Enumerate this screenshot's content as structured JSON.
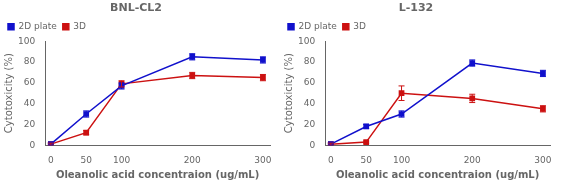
{
  "chart_data": [
    {
      "type": "line",
      "title": "BNL-CL2",
      "x": [
        0,
        50,
        100,
        200,
        300
      ],
      "series": [
        {
          "name": "2D plate",
          "color": "#1111cc",
          "marker": "square",
          "values": [
            1,
            30,
            57,
            85,
            82
          ],
          "errors": [
            1,
            3,
            3,
            3,
            3
          ]
        },
        {
          "name": "3D",
          "color": "#cc1111",
          "marker": "square",
          "values": [
            1,
            12,
            59,
            67,
            65
          ],
          "errors": [
            1,
            2,
            3,
            3,
            3
          ]
        }
      ],
      "xlabel": "Oleanolic acid concentraion (ug/mL)",
      "ylabel": "Cytotoxicity (%)",
      "xlim": [
        -8,
        310
      ],
      "ylim": [
        0,
        100
      ],
      "xticks": [
        0,
        50,
        100,
        200,
        300
      ],
      "yticks": [
        0,
        20,
        40,
        60,
        80,
        100
      ],
      "legend": "upper left",
      "grid": false
    },
    {
      "type": "line",
      "title": "L-132",
      "x": [
        0,
        50,
        100,
        200,
        300
      ],
      "series": [
        {
          "name": "2D plate",
          "color": "#1111cc",
          "marker": "square",
          "values": [
            1,
            18,
            30,
            79,
            69
          ],
          "errors": [
            1,
            2,
            3,
            3,
            3
          ]
        },
        {
          "name": "3D",
          "color": "#cc1111",
          "marker": "square",
          "values": [
            1,
            3,
            50,
            45,
            35
          ],
          "errors": [
            1,
            1,
            7,
            4,
            3
          ]
        }
      ],
      "xlabel": "Oleanolic acid concentraion (ug/mL)",
      "ylabel": "Cytotoxicity (%)",
      "xlim": [
        -8,
        310
      ],
      "ylim": [
        0,
        100
      ],
      "xticks": [
        0,
        50,
        100,
        200,
        300
      ],
      "yticks": [
        0,
        20,
        40,
        60,
        80,
        100
      ],
      "legend": "upper left",
      "grid": false
    }
  ]
}
